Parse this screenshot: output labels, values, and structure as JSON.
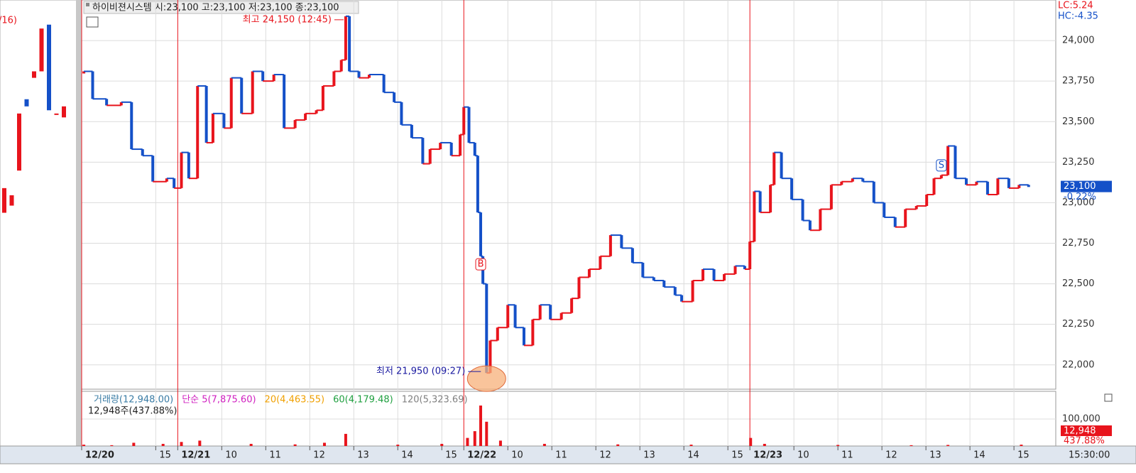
{
  "chart_data": {
    "type": "step",
    "title": "하이비젼시스템 시:23,100 고:23,100 저:23,100 종:23,100",
    "lc_label": "LC:5.24",
    "hc_label": "HC:-4.35",
    "up_color": "#e8141c",
    "down_color": "#1450c8",
    "grid": true,
    "xlim": [
      -131,
      1197
    ],
    "xticks": [
      {
        "value": -131,
        "label": "12/20"
      },
      {
        "value": -30,
        "label": "15"
      },
      {
        "value": 0,
        "label": "12/21"
      },
      {
        "value": 60,
        "label": "10"
      },
      {
        "value": 120,
        "label": "11"
      },
      {
        "value": 180,
        "label": "12"
      },
      {
        "value": 240,
        "label": "13"
      },
      {
        "value": 300,
        "label": "14"
      },
      {
        "value": 360,
        "label": "15"
      },
      {
        "value": 390,
        "label": "12/22"
      },
      {
        "value": 450,
        "label": "10"
      },
      {
        "value": 510,
        "label": "11"
      },
      {
        "value": 570,
        "label": "12"
      },
      {
        "value": 630,
        "label": "13"
      },
      {
        "value": 690,
        "label": "14"
      },
      {
        "value": 750,
        "label": "15"
      },
      {
        "value": 780,
        "label": "12/23"
      },
      {
        "value": 840,
        "label": "10"
      },
      {
        "value": 900,
        "label": "11"
      },
      {
        "value": 960,
        "label": "12"
      },
      {
        "value": 1020,
        "label": "13"
      },
      {
        "value": 1080,
        "label": "14"
      },
      {
        "value": 1140,
        "label": "15"
      }
    ],
    "end_time_label": "15:30:00",
    "ylim": [
      21850,
      24250
    ],
    "yticks": [
      {
        "value": 22000,
        "label": "22,000"
      },
      {
        "value": 22250,
        "label": "22,250"
      },
      {
        "value": 22500,
        "label": "22,500"
      },
      {
        "value": 22750,
        "label": "22,750"
      },
      {
        "value": 23000,
        "label": "23,000"
      },
      {
        "value": 23250,
        "label": "23,250"
      },
      {
        "value": 23500,
        "label": "23,500"
      },
      {
        "value": 23750,
        "label": "23,750"
      },
      {
        "value": 24000,
        "label": "24,000"
      }
    ],
    "x": [
      -128,
      -116,
      -97,
      -77,
      -63,
      -48,
      -34,
      -15,
      -5,
      5,
      15,
      27,
      39,
      48,
      63,
      73,
      87,
      102,
      116,
      131,
      145,
      160,
      174,
      189,
      198,
      213,
      223,
      229,
      234,
      247,
      261,
      281,
      295,
      305,
      319,
      334,
      344,
      358,
      373,
      385,
      390,
      397,
      405,
      409,
      413,
      416,
      421,
      426,
      436,
      450,
      460,
      472,
      484,
      494,
      508,
      523,
      537,
      547,
      561,
      576,
      590,
      605,
      620,
      634,
      649,
      663,
      678,
      687,
      702,
      716,
      731,
      745,
      760,
      773,
      780,
      786,
      794,
      808,
      813,
      823,
      837,
      852,
      862,
      876,
      891,
      905,
      920,
      934,
      949,
      963,
      978,
      992,
      1007,
      1021,
      1031,
      1041,
      1050,
      1060,
      1075,
      1089,
      1104,
      1118,
      1133,
      1147,
      1160
    ],
    "values": [
      23810,
      23640,
      23600,
      23620,
      23330,
      23290,
      23130,
      23150,
      23090,
      23310,
      23150,
      23720,
      23370,
      23550,
      23460,
      23770,
      23550,
      23810,
      23750,
      23790,
      23460,
      23510,
      23550,
      23570,
      23720,
      23810,
      23880,
      24150,
      23810,
      23770,
      23790,
      23680,
      23620,
      23480,
      23400,
      23240,
      23330,
      23370,
      23290,
      23420,
      23590,
      23370,
      23290,
      22940,
      22670,
      22500,
      21950,
      22150,
      22230,
      22370,
      22230,
      22120,
      22280,
      22370,
      22280,
      22320,
      22410,
      22540,
      22590,
      22670,
      22800,
      22720,
      22630,
      22540,
      22520,
      22480,
      22430,
      22390,
      22520,
      22590,
      22520,
      22560,
      22610,
      22590,
      22760,
      23070,
      22940,
      23110,
      23310,
      23150,
      23020,
      22890,
      22830,
      22960,
      23110,
      23130,
      23150,
      23130,
      23000,
      22910,
      22850,
      22960,
      22980,
      23050,
      23150,
      23170,
      23350,
      23150,
      23110,
      23130,
      23050,
      23150,
      23090,
      23110,
      23100
    ],
    "current_price_label": "23,100",
    "current_change_label": "-0.22%",
    "high": {
      "label": "최고 24,150 (12:45)",
      "x": 229,
      "value": 24150
    },
    "low": {
      "label": "최저 21,950 (09:27)",
      "x": 421,
      "value": 21950
    },
    "signals": [
      {
        "label": "B",
        "x": 413,
        "value": 22620
      },
      {
        "label": "S",
        "x": 1041,
        "value": 23230
      }
    ],
    "volume": {
      "legend": [
        "거래량(12,948.00)",
        "단순 5(7,875.60)",
        "20(4,463.55)",
        "60(4,179.48)",
        "120(5,323.69)"
      ],
      "legend_colors": [
        "#3a7ca5",
        "#d020c0",
        "#f0a000",
        "#20a040",
        "#808080"
      ],
      "sub_label": "12,948주(437.88%)",
      "color": "#e8141c",
      "ylim": [
        0,
        200000
      ],
      "yticks": [
        {
          "value": 100000,
          "label": "100,000"
        }
      ],
      "x": [
        -128,
        -90,
        -60,
        -20,
        5,
        30,
        100,
        160,
        200,
        229,
        300,
        360,
        395,
        405,
        413,
        421,
        440,
        500,
        600,
        700,
        781,
        800,
        900,
        1000,
        1050,
        1150
      ],
      "values": [
        5000,
        3000,
        12000,
        8000,
        15000,
        20000,
        8000,
        6000,
        12000,
        45000,
        5000,
        8000,
        30000,
        55000,
        150000,
        90000,
        20000,
        8000,
        6000,
        5000,
        30000,
        8000,
        4000,
        3000,
        4000,
        5000
      ],
      "current_label": "12,948",
      "current_pct_label": "437.88%"
    },
    "mini_chart": {
      "label": "/16)",
      "ylim": [
        20000,
        26000
      ],
      "opens": [
        22720,
        22830,
        23370,
        24470,
        24800,
        24900,
        25620,
        24250,
        24190
      ],
      "closes": [
        23100,
        22990,
        24250,
        24360,
        24900,
        25560,
        24300,
        24250,
        24360
      ]
    }
  }
}
